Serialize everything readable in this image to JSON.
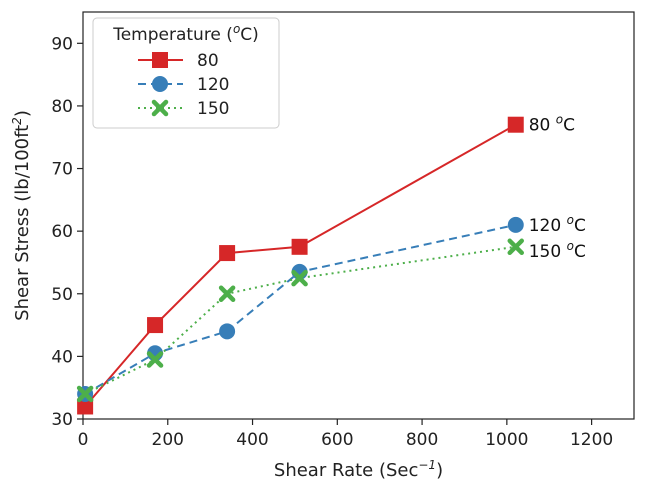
{
  "chart_data": {
    "type": "line",
    "title": "",
    "xlabel": "Shear Rate (Sec",
    "xlabel_sup": "−1",
    "xlabel_end": ")",
    "ylabel": "Shear Stress (lb/100ft",
    "ylabel_sup": "2",
    "ylabel_end": ")",
    "xlim": [
      0,
      1300
    ],
    "ylim": [
      30,
      95
    ],
    "xticks": [
      0,
      200,
      400,
      600,
      800,
      1000,
      1200
    ],
    "yticks": [
      30,
      40,
      50,
      60,
      70,
      80,
      90
    ],
    "grid": false,
    "legend": {
      "title": "Temperature (",
      "title_sup": "o",
      "title_end": "C)",
      "placement": "top-left"
    },
    "series": [
      {
        "name": "80",
        "color": "#d62728",
        "marker": "square",
        "linestyle": "solid",
        "x": [
          5,
          170,
          340,
          511,
          1021
        ],
        "y": [
          32,
          45,
          56.5,
          57.5,
          77
        ],
        "annotation": "80 ",
        "annotation_unit": "C"
      },
      {
        "name": "120",
        "color": "#377eb8",
        "marker": "circle",
        "linestyle": "dashed",
        "x": [
          5,
          170,
          340,
          511,
          1021
        ],
        "y": [
          34,
          40.5,
          44,
          53.5,
          61
        ],
        "annotation": "120 ",
        "annotation_unit": "C"
      },
      {
        "name": "150",
        "color": "#4daf4a",
        "marker": "x",
        "linestyle": "dotted",
        "x": [
          5,
          170,
          340,
          511,
          1021
        ],
        "y": [
          34,
          39.5,
          50,
          52.5,
          57.5
        ],
        "annotation": "150 ",
        "annotation_unit": "C"
      }
    ]
  }
}
